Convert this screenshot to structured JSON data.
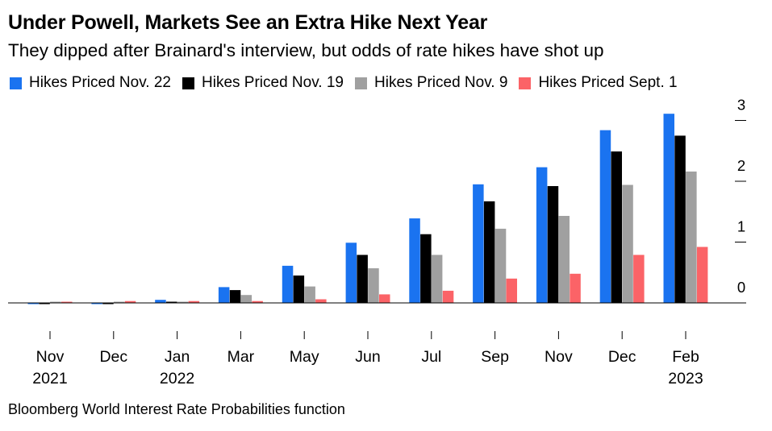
{
  "header": {
    "title": "Under Powell, Markets See an Extra Hike Next Year",
    "subtitle": "They dipped after Brainard's interview, but odds of rate hikes have shot up"
  },
  "footer": {
    "source": "Bloomberg World Interest Rate Probabilities function"
  },
  "chart_data": {
    "type": "bar",
    "title": "Under Powell, Markets See an Extra Hike Next Year",
    "subtitle": "They dipped after Brainard's interview, but odds of rate hikes have shot up",
    "categories": [
      {
        "month": "Nov",
        "year": "2021"
      },
      {
        "month": "Dec",
        "year": ""
      },
      {
        "month": "Jan",
        "year": "2022"
      },
      {
        "month": "Mar",
        "year": ""
      },
      {
        "month": "May",
        "year": ""
      },
      {
        "month": "Jun",
        "year": ""
      },
      {
        "month": "Jul",
        "year": ""
      },
      {
        "month": "Sep",
        "year": ""
      },
      {
        "month": "Nov",
        "year": ""
      },
      {
        "month": "Dec",
        "year": ""
      },
      {
        "month": "Feb",
        "year": "2023"
      }
    ],
    "series": [
      {
        "name": "Hikes Priced Nov. 22",
        "color": "#1a73f0",
        "values": [
          -0.01,
          -0.01,
          0.05,
          0.26,
          0.61,
          0.99,
          1.39,
          1.95,
          2.23,
          2.84,
          3.11
        ]
      },
      {
        "name": "Hikes Priced Nov. 19",
        "color": "#000000",
        "values": [
          -0.01,
          -0.02,
          0.0,
          0.21,
          0.45,
          0.79,
          1.13,
          1.67,
          1.92,
          2.49,
          2.75
        ]
      },
      {
        "name": "Hikes Priced Nov. 9",
        "color": "#a0a0a0",
        "values": [
          0.0,
          0.0,
          0.0,
          0.13,
          0.27,
          0.57,
          0.79,
          1.22,
          1.43,
          1.94,
          2.16
        ]
      },
      {
        "name": "Hikes Priced Sept. 1",
        "color": "#fb6367",
        "values": [
          0.0,
          0.03,
          0.03,
          0.03,
          0.06,
          0.14,
          0.2,
          0.4,
          0.48,
          0.79,
          0.92
        ]
      }
    ],
    "y_axis": {
      "ylim": [
        -0.1,
        3.3
      ],
      "ticks": [
        0,
        1,
        2,
        3
      ],
      "position": "right"
    },
    "xlabel": "",
    "ylabel": "",
    "grid": false,
    "legend_position": "top"
  }
}
